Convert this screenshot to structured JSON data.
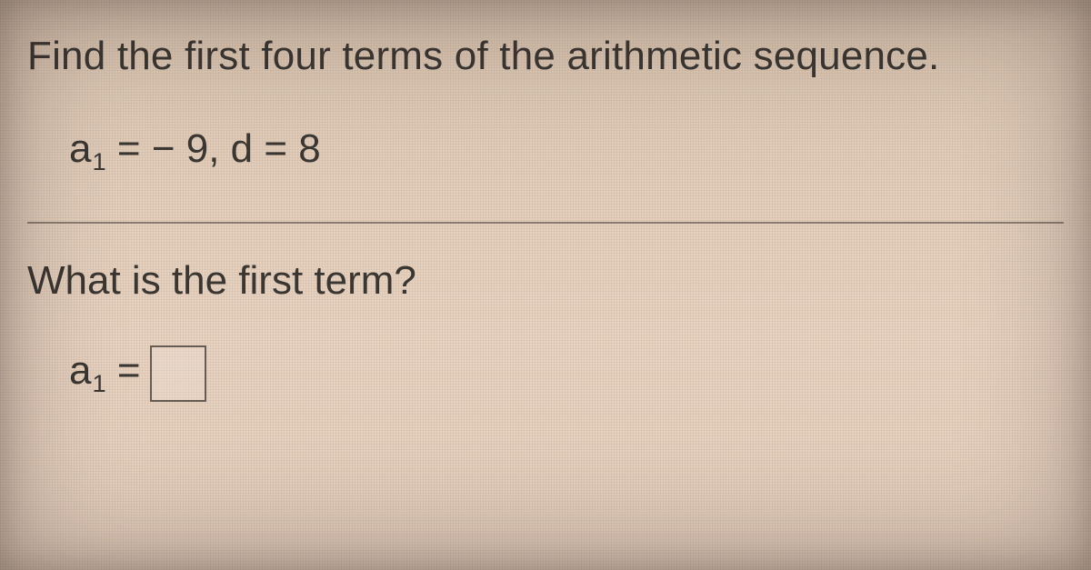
{
  "problem": {
    "instruction": "Find the first four terms of the arithmetic sequence.",
    "given_var": "a",
    "given_sub": "1",
    "given_eq": " = ",
    "given_a1": "− 9",
    "given_sep": ", ",
    "given_d_label": "d",
    "given_d_eq": " = ",
    "given_d": "8",
    "question": "What is the first term?",
    "answer_var": "a",
    "answer_sub": "1",
    "answer_eq": " = ",
    "answer_value": ""
  },
  "style": {
    "text_color": "#3a3632",
    "rule_color": "rgba(70,60,55,0.55)",
    "box_border": "#665b52",
    "font_size_pt": 33,
    "background_top": "#d7c2ae",
    "background_bottom": "#e3cdbb"
  }
}
